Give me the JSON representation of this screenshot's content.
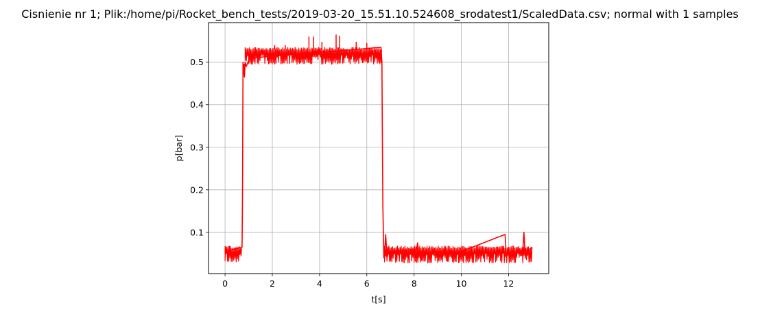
{
  "chart_data": {
    "type": "line",
    "title": "Cisnienie nr 1; Plik:/home/pi/Rocket_bench_tests/2019-03-20_15.51.10.524608_srodatest1/ScaledData.csv; normal with 1 samples",
    "xlabel": "t[s]",
    "ylabel": "p[bar]",
    "xlim": [
      -0.7,
      13.7
    ],
    "ylim": [
      0.003,
      0.593
    ],
    "xticks": [
      0,
      2,
      4,
      6,
      8,
      10,
      12
    ],
    "yticks": [
      0.1,
      0.2,
      0.3,
      0.4,
      0.5
    ],
    "grid": true,
    "legend": "none",
    "series": [
      {
        "color": "#ff0000",
        "noise_band": {
          "pre_ignition": {
            "x": [
              0.0,
              0.72
            ],
            "y_low": 0.03,
            "y_high": 0.068
          },
          "plateau": {
            "x": [
              0.85,
              6.65
            ],
            "y_low": 0.495,
            "y_high": 0.535
          },
          "tail": {
            "x": [
              6.75,
              13.0
            ],
            "y_low": 0.028,
            "y_high": 0.068
          }
        },
        "x": [
          0.0,
          0.72,
          0.74,
          0.76,
          0.78,
          0.8,
          0.82,
          0.85,
          0.9,
          1.0,
          1.1,
          6.6,
          6.64,
          6.66,
          6.68,
          6.72,
          6.76,
          6.8,
          6.85,
          6.9,
          7.0,
          8.1,
          8.15,
          8.2,
          10.0,
          11.85,
          11.9,
          12.6,
          12.65,
          12.7,
          13.0
        ],
        "y": [
          0.055,
          0.065,
          0.2,
          0.5,
          0.47,
          0.495,
          0.465,
          0.5,
          0.49,
          0.505,
          0.51,
          0.535,
          0.5,
          0.31,
          0.16,
          0.04,
          0.06,
          0.095,
          0.04,
          0.05,
          0.055,
          0.06,
          0.075,
          0.05,
          0.055,
          0.095,
          0.05,
          0.055,
          0.1,
          0.05,
          0.065
        ]
      }
    ],
    "spikes": [
      {
        "x": 2.1,
        "y": 0.54
      },
      {
        "x": 2.55,
        "y": 0.54
      },
      {
        "x": 3.55,
        "y": 0.56
      },
      {
        "x": 3.75,
        "y": 0.56
      },
      {
        "x": 4.1,
        "y": 0.548
      },
      {
        "x": 4.7,
        "y": 0.565
      },
      {
        "x": 4.85,
        "y": 0.562
      },
      {
        "x": 5.55,
        "y": 0.548
      },
      {
        "x": 6.0,
        "y": 0.545
      }
    ]
  }
}
